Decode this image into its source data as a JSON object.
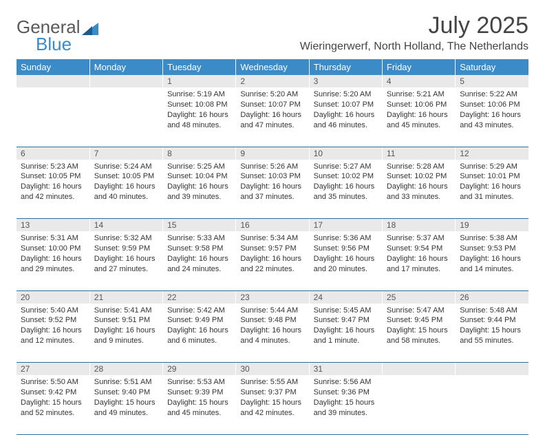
{
  "logo": {
    "text_general": "General",
    "text_blue": "Blue"
  },
  "title": "July 2025",
  "location": "Wieringerwerf, North Holland, The Netherlands",
  "day_headers": [
    "Sunday",
    "Monday",
    "Tuesday",
    "Wednesday",
    "Thursday",
    "Friday",
    "Saturday"
  ],
  "colors": {
    "header_bg": "#3b8bc8",
    "header_text": "#ffffff",
    "daynum_bg": "#e9e9e9",
    "rule": "#2a6fa3",
    "text": "#333333"
  },
  "weeks": [
    [
      null,
      null,
      {
        "n": "1",
        "sr": "Sunrise: 5:19 AM",
        "ss": "Sunset: 10:08 PM",
        "dl": "Daylight: 16 hours and 48 minutes."
      },
      {
        "n": "2",
        "sr": "Sunrise: 5:20 AM",
        "ss": "Sunset: 10:07 PM",
        "dl": "Daylight: 16 hours and 47 minutes."
      },
      {
        "n": "3",
        "sr": "Sunrise: 5:20 AM",
        "ss": "Sunset: 10:07 PM",
        "dl": "Daylight: 16 hours and 46 minutes."
      },
      {
        "n": "4",
        "sr": "Sunrise: 5:21 AM",
        "ss": "Sunset: 10:06 PM",
        "dl": "Daylight: 16 hours and 45 minutes."
      },
      {
        "n": "5",
        "sr": "Sunrise: 5:22 AM",
        "ss": "Sunset: 10:06 PM",
        "dl": "Daylight: 16 hours and 43 minutes."
      }
    ],
    [
      {
        "n": "6",
        "sr": "Sunrise: 5:23 AM",
        "ss": "Sunset: 10:05 PM",
        "dl": "Daylight: 16 hours and 42 minutes."
      },
      {
        "n": "7",
        "sr": "Sunrise: 5:24 AM",
        "ss": "Sunset: 10:05 PM",
        "dl": "Daylight: 16 hours and 40 minutes."
      },
      {
        "n": "8",
        "sr": "Sunrise: 5:25 AM",
        "ss": "Sunset: 10:04 PM",
        "dl": "Daylight: 16 hours and 39 minutes."
      },
      {
        "n": "9",
        "sr": "Sunrise: 5:26 AM",
        "ss": "Sunset: 10:03 PM",
        "dl": "Daylight: 16 hours and 37 minutes."
      },
      {
        "n": "10",
        "sr": "Sunrise: 5:27 AM",
        "ss": "Sunset: 10:02 PM",
        "dl": "Daylight: 16 hours and 35 minutes."
      },
      {
        "n": "11",
        "sr": "Sunrise: 5:28 AM",
        "ss": "Sunset: 10:02 PM",
        "dl": "Daylight: 16 hours and 33 minutes."
      },
      {
        "n": "12",
        "sr": "Sunrise: 5:29 AM",
        "ss": "Sunset: 10:01 PM",
        "dl": "Daylight: 16 hours and 31 minutes."
      }
    ],
    [
      {
        "n": "13",
        "sr": "Sunrise: 5:31 AM",
        "ss": "Sunset: 10:00 PM",
        "dl": "Daylight: 16 hours and 29 minutes."
      },
      {
        "n": "14",
        "sr": "Sunrise: 5:32 AM",
        "ss": "Sunset: 9:59 PM",
        "dl": "Daylight: 16 hours and 27 minutes."
      },
      {
        "n": "15",
        "sr": "Sunrise: 5:33 AM",
        "ss": "Sunset: 9:58 PM",
        "dl": "Daylight: 16 hours and 24 minutes."
      },
      {
        "n": "16",
        "sr": "Sunrise: 5:34 AM",
        "ss": "Sunset: 9:57 PM",
        "dl": "Daylight: 16 hours and 22 minutes."
      },
      {
        "n": "17",
        "sr": "Sunrise: 5:36 AM",
        "ss": "Sunset: 9:56 PM",
        "dl": "Daylight: 16 hours and 20 minutes."
      },
      {
        "n": "18",
        "sr": "Sunrise: 5:37 AM",
        "ss": "Sunset: 9:54 PM",
        "dl": "Daylight: 16 hours and 17 minutes."
      },
      {
        "n": "19",
        "sr": "Sunrise: 5:38 AM",
        "ss": "Sunset: 9:53 PM",
        "dl": "Daylight: 16 hours and 14 minutes."
      }
    ],
    [
      {
        "n": "20",
        "sr": "Sunrise: 5:40 AM",
        "ss": "Sunset: 9:52 PM",
        "dl": "Daylight: 16 hours and 12 minutes."
      },
      {
        "n": "21",
        "sr": "Sunrise: 5:41 AM",
        "ss": "Sunset: 9:51 PM",
        "dl": "Daylight: 16 hours and 9 minutes."
      },
      {
        "n": "22",
        "sr": "Sunrise: 5:42 AM",
        "ss": "Sunset: 9:49 PM",
        "dl": "Daylight: 16 hours and 6 minutes."
      },
      {
        "n": "23",
        "sr": "Sunrise: 5:44 AM",
        "ss": "Sunset: 9:48 PM",
        "dl": "Daylight: 16 hours and 4 minutes."
      },
      {
        "n": "24",
        "sr": "Sunrise: 5:45 AM",
        "ss": "Sunset: 9:47 PM",
        "dl": "Daylight: 16 hours and 1 minute."
      },
      {
        "n": "25",
        "sr": "Sunrise: 5:47 AM",
        "ss": "Sunset: 9:45 PM",
        "dl": "Daylight: 15 hours and 58 minutes."
      },
      {
        "n": "26",
        "sr": "Sunrise: 5:48 AM",
        "ss": "Sunset: 9:44 PM",
        "dl": "Daylight: 15 hours and 55 minutes."
      }
    ],
    [
      {
        "n": "27",
        "sr": "Sunrise: 5:50 AM",
        "ss": "Sunset: 9:42 PM",
        "dl": "Daylight: 15 hours and 52 minutes."
      },
      {
        "n": "28",
        "sr": "Sunrise: 5:51 AM",
        "ss": "Sunset: 9:40 PM",
        "dl": "Daylight: 15 hours and 49 minutes."
      },
      {
        "n": "29",
        "sr": "Sunrise: 5:53 AM",
        "ss": "Sunset: 9:39 PM",
        "dl": "Daylight: 15 hours and 45 minutes."
      },
      {
        "n": "30",
        "sr": "Sunrise: 5:55 AM",
        "ss": "Sunset: 9:37 PM",
        "dl": "Daylight: 15 hours and 42 minutes."
      },
      {
        "n": "31",
        "sr": "Sunrise: 5:56 AM",
        "ss": "Sunset: 9:36 PM",
        "dl": "Daylight: 15 hours and 39 minutes."
      },
      null,
      null
    ]
  ]
}
